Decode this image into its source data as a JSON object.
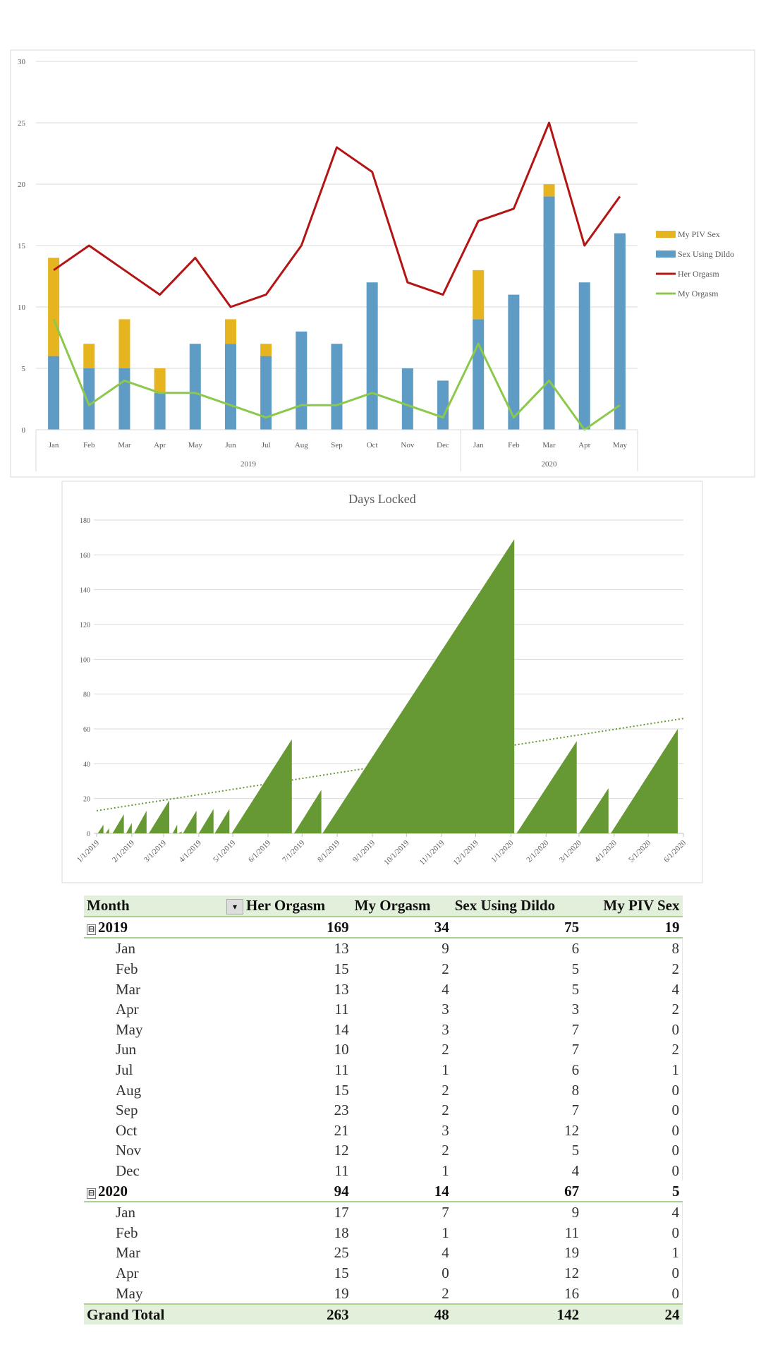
{
  "chart_data": [
    {
      "type": "bar+line",
      "title": "",
      "ylim": [
        0,
        30
      ],
      "yticks": [
        0,
        5,
        10,
        15,
        20,
        25,
        30
      ],
      "grid": true,
      "legend_position": "right",
      "categories": [
        "Jan",
        "Feb",
        "Mar",
        "Apr",
        "May",
        "Jun",
        "Jul",
        "Aug",
        "Sep",
        "Oct",
        "Nov",
        "Dec",
        "Jan",
        "Feb",
        "Mar",
        "Apr",
        "May"
      ],
      "groups": [
        {
          "label": "2019",
          "count": 12
        },
        {
          "label": "2020",
          "count": 5
        }
      ],
      "series": [
        {
          "name": "My PIV Sex",
          "kind": "stacked-bar",
          "color": "#e6b41e",
          "values": [
            8,
            2,
            4,
            2,
            0,
            2,
            1,
            0,
            0,
            0,
            0,
            0,
            4,
            0,
            1,
            0,
            0
          ]
        },
        {
          "name": "Sex Using Dildo",
          "kind": "stacked-bar",
          "color": "#5e9cc5",
          "values": [
            6,
            5,
            5,
            3,
            7,
            7,
            6,
            8,
            7,
            12,
            5,
            4,
            9,
            11,
            19,
            12,
            16
          ]
        },
        {
          "name": "Her Orgasm",
          "kind": "line",
          "color": "#b31414",
          "values": [
            13,
            15,
            13,
            11,
            14,
            10,
            11,
            15,
            23,
            21,
            12,
            11,
            17,
            18,
            25,
            15,
            19
          ]
        },
        {
          "name": "My Orgasm",
          "kind": "line",
          "color": "#8cc84b",
          "values": [
            9,
            2,
            4,
            3,
            3,
            2,
            1,
            2,
            2,
            3,
            2,
            1,
            7,
            1,
            4,
            0,
            2
          ]
        }
      ]
    },
    {
      "type": "area",
      "title": "Days Locked",
      "ylim": [
        0,
        180
      ],
      "yticks": [
        0,
        20,
        40,
        60,
        80,
        100,
        120,
        140,
        160,
        180
      ],
      "grid": true,
      "color": "#669933",
      "xticks": [
        "1/1/2019",
        "2/1/2019",
        "3/1/2019",
        "4/1/2019",
        "5/1/2019",
        "6/1/2019",
        "7/1/2019",
        "8/1/2019",
        "9/1/2019",
        "10/1/2019",
        "11/1/2019",
        "12/1/2019",
        "1/1/2020",
        "2/1/2020",
        "3/1/2020",
        "4/1/2020",
        "5/1/2020",
        "6/1/2020"
      ],
      "lock_periods": [
        {
          "start": "2019-01-02",
          "end": "2019-01-07",
          "peak": 5
        },
        {
          "start": "2019-01-09",
          "end": "2019-01-12",
          "peak": 3
        },
        {
          "start": "2019-01-15",
          "end": "2019-01-25",
          "peak": 11
        },
        {
          "start": "2019-01-27",
          "end": "2019-02-01",
          "peak": 6
        },
        {
          "start": "2019-02-03",
          "end": "2019-02-14",
          "peak": 13
        },
        {
          "start": "2019-02-16",
          "end": "2019-03-06",
          "peak": 19
        },
        {
          "start": "2019-03-09",
          "end": "2019-03-13",
          "peak": 5
        },
        {
          "start": "2019-03-14",
          "end": "2019-03-17",
          "peak": 1
        },
        {
          "start": "2019-03-18",
          "end": "2019-03-30",
          "peak": 13
        },
        {
          "start": "2019-04-01",
          "end": "2019-04-14",
          "peak": 14
        },
        {
          "start": "2019-04-15",
          "end": "2019-04-28",
          "peak": 14
        },
        {
          "start": "2019-04-30",
          "end": "2019-06-22",
          "peak": 54
        },
        {
          "start": "2019-06-24",
          "end": "2019-07-18",
          "peak": 25
        },
        {
          "start": "2019-07-19",
          "end": "2020-01-04",
          "peak": 169
        },
        {
          "start": "2020-01-06",
          "end": "2020-02-28",
          "peak": 53
        },
        {
          "start": "2020-03-01",
          "end": "2020-03-27",
          "peak": 26
        },
        {
          "start": "2020-03-29",
          "end": "2020-05-27",
          "peak": 60
        }
      ],
      "trendline": {
        "style": "dotted linear",
        "start": {
          "date": "2019-01-01",
          "value": 13
        },
        "end": {
          "date": "2020-06-01",
          "value": 66
        }
      }
    }
  ],
  "pivot": {
    "headers": [
      "Month",
      "Her Orgasm",
      "My Orgasm",
      "Sex Using Dildo",
      "My PIV Sex"
    ],
    "filter_icon": "filter-sort-icon",
    "collapse_icon": "⊟",
    "years": [
      {
        "year": "2019",
        "totals": [
          "169",
          "34",
          "75",
          "19"
        ],
        "months": [
          [
            "Jan",
            "13",
            "9",
            "6",
            "8"
          ],
          [
            "Feb",
            "15",
            "2",
            "5",
            "2"
          ],
          [
            "Mar",
            "13",
            "4",
            "5",
            "4"
          ],
          [
            "Apr",
            "11",
            "3",
            "3",
            "2"
          ],
          [
            "May",
            "14",
            "3",
            "7",
            "0"
          ],
          [
            "Jun",
            "10",
            "2",
            "7",
            "2"
          ],
          [
            "Jul",
            "11",
            "1",
            "6",
            "1"
          ],
          [
            "Aug",
            "15",
            "2",
            "8",
            "0"
          ],
          [
            "Sep",
            "23",
            "2",
            "7",
            "0"
          ],
          [
            "Oct",
            "21",
            "3",
            "12",
            "0"
          ],
          [
            "Nov",
            "12",
            "2",
            "5",
            "0"
          ],
          [
            "Dec",
            "11",
            "1",
            "4",
            "0"
          ]
        ]
      },
      {
        "year": "2020",
        "totals": [
          "94",
          "14",
          "67",
          "5"
        ],
        "months": [
          [
            "Jan",
            "17",
            "7",
            "9",
            "4"
          ],
          [
            "Feb",
            "18",
            "1",
            "11",
            "0"
          ],
          [
            "Mar",
            "25",
            "4",
            "19",
            "1"
          ],
          [
            "Apr",
            "15",
            "0",
            "12",
            "0"
          ],
          [
            "May",
            "19",
            "2",
            "16",
            "0"
          ]
        ]
      }
    ],
    "grand_total": {
      "label": "Grand Total",
      "values": [
        "263",
        "48",
        "142",
        "24"
      ]
    }
  }
}
